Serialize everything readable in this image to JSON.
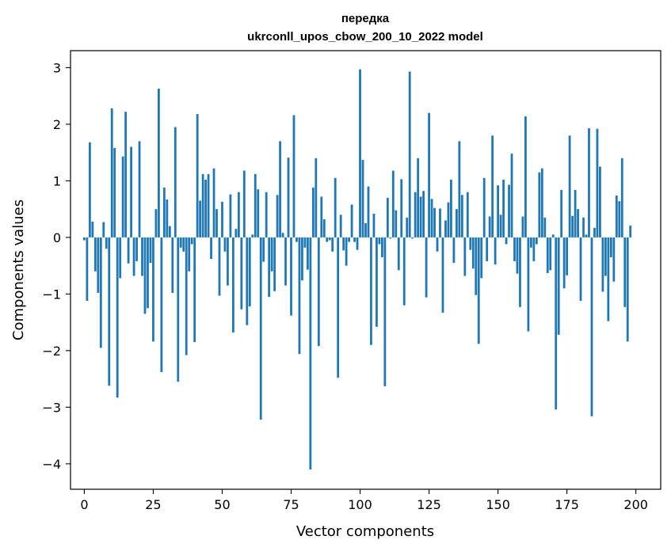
{
  "chart_data": {
    "type": "bar",
    "title": "передка",
    "subtitle": "ukrconll_upos_cbow_200_10_2022 model",
    "xlabel": "Vector components",
    "ylabel": "Components values",
    "xlim": [
      -5,
      209
    ],
    "ylim": [
      -4.45,
      3.3
    ],
    "xticks": [
      0,
      25,
      50,
      75,
      100,
      125,
      150,
      175,
      200
    ],
    "yticks": [
      -4,
      -3,
      -2,
      -1,
      0,
      1,
      2,
      3
    ],
    "xtick_labels": [
      "0",
      "25",
      "50",
      "75",
      "100",
      "125",
      "150",
      "175",
      "200"
    ],
    "ytick_labels": [
      "−4",
      "−3",
      "−2",
      "−1",
      "0",
      "1",
      "2",
      "3"
    ],
    "bar_color": "#1f77b4",
    "grid": false,
    "values": [
      -0.05,
      -1.12,
      1.68,
      0.28,
      -0.6,
      -0.98,
      -1.95,
      0.27,
      -0.2,
      -2.62,
      2.28,
      1.58,
      -2.83,
      -0.72,
      1.43,
      2.22,
      -0.46,
      1.6,
      -0.68,
      -0.42,
      1.7,
      -0.68,
      -1.35,
      -1.25,
      -0.45,
      -1.84,
      0.5,
      2.63,
      -2.38,
      0.88,
      0.67,
      0.2,
      -0.98,
      1.95,
      -2.55,
      -0.18,
      -0.25,
      -2.08,
      -0.6,
      -0.12,
      -1.85,
      2.18,
      0.65,
      1.12,
      1.02,
      1.12,
      -0.38,
      1.22,
      0.5,
      -1.03,
      0.63,
      -0.25,
      -0.85,
      0.76,
      -1.68,
      0.15,
      0.8,
      -1.27,
      1.18,
      -1.55,
      -1.22,
      0.05,
      1.12,
      0.85,
      -3.22,
      -0.43,
      0.8,
      -1.05,
      -0.6,
      -0.95,
      0.75,
      1.7,
      0.08,
      -0.85,
      1.41,
      -1.38,
      2.16,
      -0.08,
      -2.06,
      -0.76,
      -0.18,
      -0.57,
      -4.1,
      0.88,
      1.4,
      -1.92,
      0.72,
      0.32,
      -0.08,
      -0.05,
      -0.25,
      1.05,
      -2.48,
      0.4,
      -0.23,
      -0.5,
      -0.08,
      0.58,
      -0.08,
      -0.22,
      2.97,
      1.37,
      0.25,
      0.9,
      -1.9,
      0.42,
      -1.58,
      -0.12,
      -0.35,
      -2.63,
      0.7,
      -0.02,
      1.18,
      0.48,
      -0.58,
      1.03,
      -1.2,
      0.35,
      2.93,
      -0.02,
      0.8,
      1.4,
      0.72,
      0.82,
      -1.06,
      2.2,
      0.68,
      0.52,
      -0.25,
      0.51,
      -1.33,
      0.3,
      0.62,
      1.02,
      -0.45,
      0.5,
      1.7,
      0.75,
      -0.68,
      0.8,
      -0.22,
      -0.55,
      -1.02,
      -1.88,
      -0.72,
      1.05,
      -0.42,
      0.37,
      1.8,
      -0.48,
      0.92,
      0.4,
      1.02,
      -0.12,
      0.93,
      1.48,
      -0.42,
      -0.64,
      -1.23,
      0.37,
      2.14,
      -1.66,
      -0.18,
      -0.42,
      -0.12,
      1.15,
      1.22,
      0.35,
      -0.63,
      -0.58,
      0.05,
      -3.04,
      -1.72,
      0.84,
      -0.9,
      -0.67,
      1.8,
      0.38,
      0.84,
      0.5,
      -1.12,
      0.35,
      0.05,
      1.93,
      -3.16,
      0.17,
      1.92,
      1.25,
      -0.96,
      -0.68,
      -1.48,
      -0.35,
      -0.78,
      0.74,
      0.64,
      1.4,
      -1.23,
      -1.84,
      0.21
    ]
  }
}
